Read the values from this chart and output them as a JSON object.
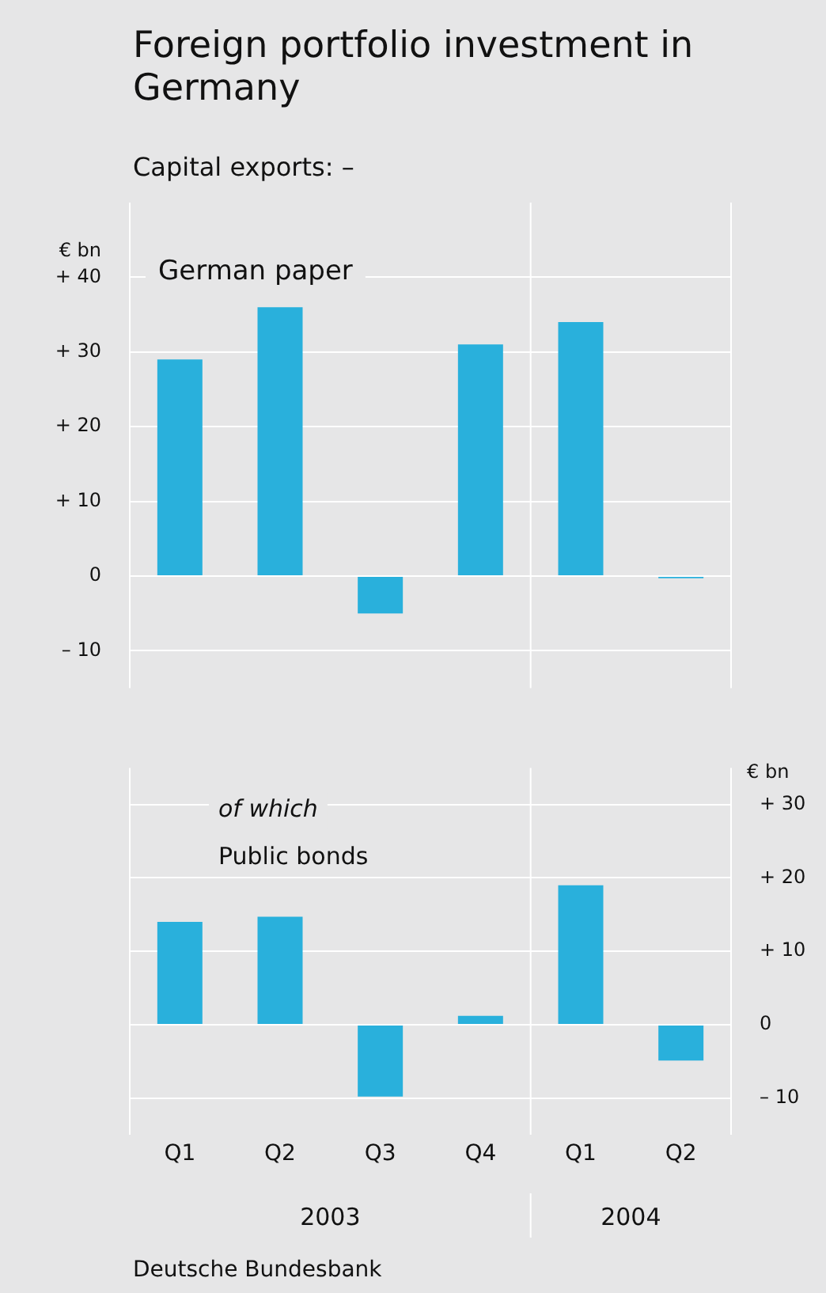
{
  "chart_data": [
    {
      "type": "bar",
      "title": "Foreign portfolio investment in Germany",
      "subtitle": "Capital exports: –",
      "ylabel": "€ bn",
      "categories": [
        null,
        null,
        null,
        null,
        null,
        null
      ],
      "series": [
        {
          "color": "#29b0dc",
          "values": [
            29,
            36,
            -5,
            31,
            34,
            -0.3
          ]
        }
      ],
      "ylim": [
        -15,
        50
      ],
      "yticks": [
        {
          "value": -10,
          "label": "– 10"
        },
        0,
        {
          "value": 10,
          "label": "+ 10"
        },
        {
          "value": 20,
          "label": "+ 20"
        },
        {
          "value": 30,
          "label": "+ 30"
        },
        {
          "value": 40,
          "label": "+ 40"
        }
      ],
      "grid": "y",
      "tick_labels": "y",
      "annotations": [
        "German paper"
      ]
    },
    {
      "type": "bar",
      "ylabel": "€ bn",
      "categories": [
        "Q1",
        "Q2",
        "Q3",
        "Q4",
        "Q1",
        "Q2"
      ],
      "series": [
        {
          "color": "#29b0dc",
          "values": [
            14,
            14.7,
            -9.8,
            1.2,
            19,
            -4.9
          ]
        }
      ],
      "ylim": [
        -15,
        35
      ],
      "yticks": [
        {
          "value": -10,
          "label": "– 10"
        },
        0,
        {
          "value": 10,
          "label": "+ 10"
        },
        {
          "value": 20,
          "label": "+ 20"
        },
        {
          "value": 30,
          "label": "+ 30"
        }
      ],
      "grid": "y",
      "annotations": [
        "of which",
        "Public bonds",
        "2003",
        "2004",
        "Deutsche Bundesbank"
      ]
    }
  ]
}
